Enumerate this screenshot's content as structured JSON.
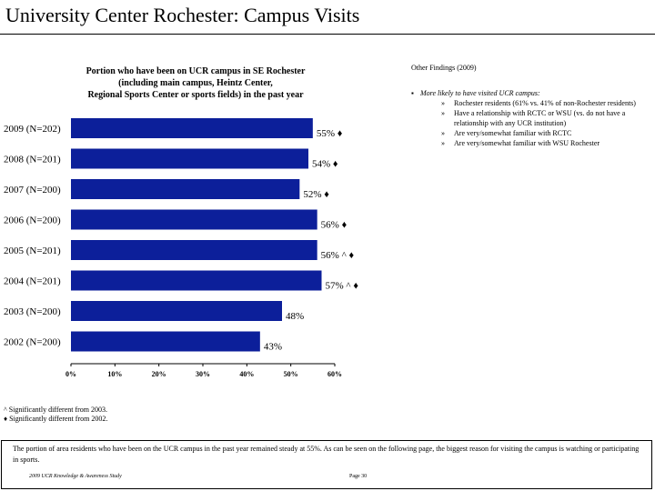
{
  "page": {
    "title": "University Center Rochester:  Campus Visits",
    "footer_left": "2009 UCR Knowledge & Awareness Study",
    "footer_right": "Page 30",
    "summary": "The portion of area residents who have been on the UCR campus in the past year remained steady at 55%. As can be seen on the following page, the biggest reason for visiting the campus is watching or participating in sports."
  },
  "findings": {
    "heading": "Other Findings (2009)",
    "main": "More likely to have visited UCR campus:",
    "items": [
      "Rochester residents (61% vs. 41% of non-Rochester residents)",
      "Have a relationship with RCTC or WSU (vs. do not have a relationship with any UCR institution)",
      "Are very/somewhat familiar with RCTC",
      "Are very/somewhat familiar with WSU Rochester"
    ]
  },
  "footnotes": [
    "^ Significantly different from 2003.",
    "♦ Significantly different from 2002."
  ],
  "colors": {
    "bar": "#0c1f9a"
  },
  "chart_data": {
    "type": "bar",
    "orientation": "horizontal",
    "title": "Portion who have been on UCR campus in SE Rochester\n(including main campus, Heintz Center,\nRegional Sports Center or sports fields) in the past year",
    "categories": [
      "2009 (N=202)",
      "2008 (N=201)",
      "2007 (N=200)",
      "2006 (N=200)",
      "2005 (N=201)",
      "2004 (N=201)",
      "2003 (N=200)",
      "2002 (N=200)"
    ],
    "values": [
      55,
      54,
      52,
      56,
      56,
      57,
      48,
      43
    ],
    "value_labels": [
      "55%",
      "54%",
      "52%",
      "56%",
      "56%",
      "57%",
      "48%",
      "43%"
    ],
    "markers": [
      "♦",
      "♦",
      "♦",
      "♦",
      "^ ♦",
      "^ ♦",
      "",
      ""
    ],
    "xlim": [
      0,
      60
    ],
    "xticks": [
      "0%",
      "10%",
      "20%",
      "30%",
      "40%",
      "50%",
      "60%"
    ],
    "grid": false
  }
}
